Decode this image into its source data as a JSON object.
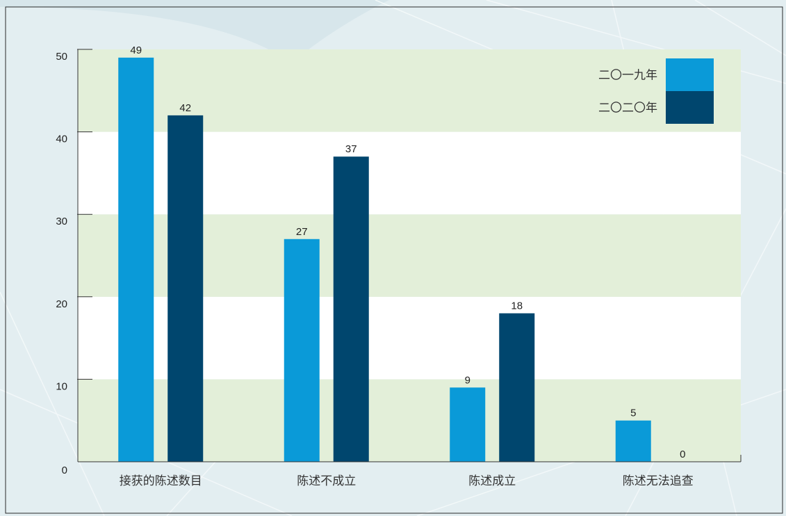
{
  "chart_data": {
    "type": "bar",
    "categories": [
      "接获的陈述数目",
      "陈述不成立",
      "陈述成立",
      "陈述无法追查"
    ],
    "series": [
      {
        "name": "二〇一九年",
        "values": [
          49,
          27,
          9,
          5
        ],
        "color": "#0a9ad8"
      },
      {
        "name": "二〇二〇年",
        "values": [
          42,
          37,
          18,
          0
        ],
        "color": "#00466e"
      }
    ],
    "y_ticks": [
      0,
      10,
      20,
      30,
      40,
      50
    ],
    "ylim": [
      0,
      50
    ],
    "title": "",
    "xlabel": "",
    "ylabel": "",
    "legend_position": "top-right",
    "grid": "alternating horizontal bands",
    "colors": {
      "band": "#e3efd9",
      "band_alt": "#ffffff",
      "axis": "#333333",
      "page_background": "#e6f0f3"
    }
  }
}
